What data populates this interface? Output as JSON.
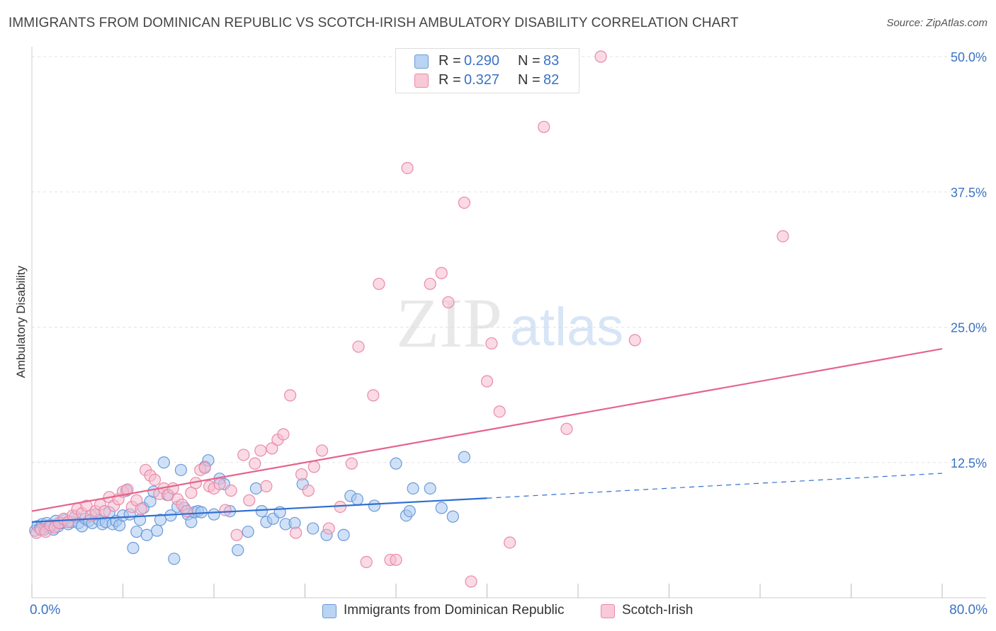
{
  "header": {
    "title": "IMMIGRANTS FROM DOMINICAN REPUBLIC VS SCOTCH-IRISH AMBULATORY DISABILITY CORRELATION CHART",
    "source": "Source: ZipAtlas.com"
  },
  "watermark": {
    "zip": "ZIP",
    "atlas": "atlas"
  },
  "colors": {
    "blue_fill": "#a9c8f0",
    "blue_stroke": "#6b9ad8",
    "blue_line": "#2f6fd1",
    "pink_fill": "#f5bccd",
    "pink_stroke": "#e98aa8",
    "pink_line": "#e5638b",
    "tick_text": "#3a72c4",
    "grid": "#e3e3e3"
  },
  "legend_top": {
    "rows": [
      {
        "r_label": "R =",
        "r_value": "0.290",
        "n_label": "N =",
        "n_value": "83"
      },
      {
        "r_label": "R =",
        "r_value": "0.327",
        "n_label": "N =",
        "n_value": "82"
      }
    ]
  },
  "chart_data": {
    "type": "scatter",
    "title": "IMMIGRANTS FROM DOMINICAN REPUBLIC VS SCOTCH-IRISH AMBULATORY DISABILITY CORRELATION CHART",
    "xlabel": "",
    "ylabel": "Ambulatory Disability",
    "xlim": [
      0,
      80
    ],
    "ylim": [
      0,
      50
    ],
    "x_tick_labels": [
      "0.0%",
      "80.0%"
    ],
    "y_ticks": [
      12.5,
      25.0,
      37.5,
      50.0
    ],
    "y_tick_labels": [
      "12.5%",
      "25.0%",
      "37.5%",
      "50.0%"
    ],
    "grid": true,
    "legend_position": "top-center",
    "series": [
      {
        "name": "Immigrants from Dominican Republic",
        "color": "#a9c8f0",
        "trend": {
          "x0": 0,
          "y0": 7.0,
          "x1": 40,
          "y1": 9.2,
          "dashed_to_x": 80,
          "dashed_to_y": 11.5
        },
        "points": [
          [
            0.3,
            6.2
          ],
          [
            0.5,
            6.6
          ],
          [
            0.7,
            6.4
          ],
          [
            0.9,
            6.8
          ],
          [
            1.1,
            6.3
          ],
          [
            1.3,
            6.9
          ],
          [
            1.5,
            6.5
          ],
          [
            1.7,
            6.7
          ],
          [
            1.9,
            6.3
          ],
          [
            2.1,
            7.1
          ],
          [
            2.3,
            6.6
          ],
          [
            2.6,
            6.9
          ],
          [
            2.9,
            7.2
          ],
          [
            3.2,
            6.8
          ],
          [
            3.5,
            7.0
          ],
          [
            3.8,
            7.5
          ],
          [
            4.1,
            6.9
          ],
          [
            4.4,
            6.6
          ],
          [
            4.7,
            7.3
          ],
          [
            5.0,
            7.1
          ],
          [
            5.3,
            6.9
          ],
          [
            5.6,
            7.7
          ],
          [
            5.9,
            7.2
          ],
          [
            6.2,
            6.8
          ],
          [
            6.5,
            7.0
          ],
          [
            6.8,
            7.9
          ],
          [
            7.1,
            6.8
          ],
          [
            7.4,
            7.1
          ],
          [
            7.7,
            6.7
          ],
          [
            8.0,
            7.6
          ],
          [
            8.3,
            9.9
          ],
          [
            8.6,
            7.7
          ],
          [
            8.9,
            4.6
          ],
          [
            9.2,
            6.1
          ],
          [
            9.5,
            7.2
          ],
          [
            9.8,
            8.3
          ],
          [
            10.1,
            5.8
          ],
          [
            10.4,
            8.9
          ],
          [
            10.7,
            9.8
          ],
          [
            11.0,
            6.2
          ],
          [
            11.3,
            7.2
          ],
          [
            11.6,
            12.5
          ],
          [
            11.9,
            9.5
          ],
          [
            12.2,
            7.6
          ],
          [
            12.5,
            3.6
          ],
          [
            12.8,
            8.4
          ],
          [
            13.1,
            11.8
          ],
          [
            13.4,
            8.3
          ],
          [
            13.7,
            7.7
          ],
          [
            14.0,
            7.0
          ],
          [
            14.3,
            7.9
          ],
          [
            14.6,
            8.0
          ],
          [
            14.9,
            7.9
          ],
          [
            15.2,
            12.1
          ],
          [
            15.5,
            12.7
          ],
          [
            16.0,
            7.7
          ],
          [
            16.5,
            11.0
          ],
          [
            16.9,
            10.5
          ],
          [
            17.4,
            8.0
          ],
          [
            18.1,
            4.4
          ],
          [
            19.0,
            6.1
          ],
          [
            19.7,
            10.1
          ],
          [
            20.2,
            8.0
          ],
          [
            20.6,
            7.0
          ],
          [
            21.2,
            7.3
          ],
          [
            21.8,
            7.9
          ],
          [
            22.3,
            6.8
          ],
          [
            23.1,
            6.9
          ],
          [
            23.8,
            10.5
          ],
          [
            24.7,
            6.4
          ],
          [
            25.9,
            5.8
          ],
          [
            27.4,
            5.8
          ],
          [
            28.0,
            9.4
          ],
          [
            28.6,
            9.1
          ],
          [
            30.1,
            8.5
          ],
          [
            32.0,
            12.4
          ],
          [
            32.9,
            7.6
          ],
          [
            33.2,
            8.0
          ],
          [
            33.5,
            10.1
          ],
          [
            35.0,
            10.1
          ],
          [
            36.0,
            8.3
          ],
          [
            37.0,
            7.5
          ],
          [
            38.0,
            13.0
          ]
        ]
      },
      {
        "name": "Scotch-Irish",
        "color": "#f5bccd",
        "trend": {
          "x0": 0,
          "y0": 8.0,
          "x1": 80,
          "y1": 23.0
        },
        "points": [
          [
            0.4,
            6.0
          ],
          [
            0.8,
            6.3
          ],
          [
            1.2,
            6.1
          ],
          [
            1.6,
            6.7
          ],
          [
            2.0,
            6.5
          ],
          [
            2.4,
            6.9
          ],
          [
            2.8,
            7.3
          ],
          [
            3.2,
            7.0
          ],
          [
            3.6,
            7.6
          ],
          [
            4.0,
            8.2
          ],
          [
            4.4,
            7.8
          ],
          [
            4.8,
            8.5
          ],
          [
            5.2,
            7.6
          ],
          [
            5.6,
            8.0
          ],
          [
            6.0,
            8.6
          ],
          [
            6.4,
            8.0
          ],
          [
            6.8,
            9.3
          ],
          [
            7.2,
            8.5
          ],
          [
            7.6,
            9.1
          ],
          [
            8.0,
            9.8
          ],
          [
            8.4,
            10.0
          ],
          [
            8.8,
            8.4
          ],
          [
            9.2,
            9.0
          ],
          [
            9.6,
            8.2
          ],
          [
            10.0,
            11.8
          ],
          [
            10.4,
            11.3
          ],
          [
            10.8,
            10.9
          ],
          [
            11.2,
            9.6
          ],
          [
            11.6,
            10.1
          ],
          [
            12.0,
            9.5
          ],
          [
            12.4,
            10.1
          ],
          [
            12.8,
            9.1
          ],
          [
            13.2,
            8.6
          ],
          [
            13.6,
            8.0
          ],
          [
            14.0,
            9.7
          ],
          [
            14.4,
            10.6
          ],
          [
            14.8,
            11.8
          ],
          [
            15.2,
            12.0
          ],
          [
            15.6,
            10.3
          ],
          [
            16.0,
            10.1
          ],
          [
            16.5,
            10.5
          ],
          [
            17.0,
            8.1
          ],
          [
            17.5,
            9.9
          ],
          [
            18.0,
            5.8
          ],
          [
            18.6,
            13.2
          ],
          [
            19.1,
            9.0
          ],
          [
            19.6,
            12.4
          ],
          [
            20.1,
            13.6
          ],
          [
            20.6,
            10.3
          ],
          [
            21.1,
            13.8
          ],
          [
            21.6,
            14.6
          ],
          [
            22.1,
            15.1
          ],
          [
            22.7,
            18.7
          ],
          [
            23.2,
            6.0
          ],
          [
            23.7,
            11.4
          ],
          [
            24.3,
            9.9
          ],
          [
            24.8,
            12.1
          ],
          [
            25.5,
            13.6
          ],
          [
            26.1,
            6.4
          ],
          [
            27.1,
            8.4
          ],
          [
            28.1,
            12.4
          ],
          [
            28.7,
            23.2
          ],
          [
            29.4,
            3.3
          ],
          [
            30.0,
            18.7
          ],
          [
            30.5,
            29.0
          ],
          [
            31.5,
            3.5
          ],
          [
            32.0,
            3.5
          ],
          [
            33.0,
            39.7
          ],
          [
            35.0,
            29.0
          ],
          [
            36.0,
            30.0
          ],
          [
            36.6,
            27.3
          ],
          [
            38.0,
            36.5
          ],
          [
            38.6,
            1.5
          ],
          [
            40.0,
            20.0
          ],
          [
            40.4,
            23.5
          ],
          [
            41.1,
            17.2
          ],
          [
            42.0,
            5.1
          ],
          [
            45.0,
            43.5
          ],
          [
            47.0,
            15.6
          ],
          [
            50.0,
            50.0
          ],
          [
            53.0,
            23.8
          ],
          [
            66.0,
            33.4
          ]
        ]
      }
    ]
  },
  "legend_bottom": {
    "items": [
      {
        "label": "Immigrants from Dominican Republic"
      },
      {
        "label": "Scotch-Irish"
      }
    ]
  }
}
